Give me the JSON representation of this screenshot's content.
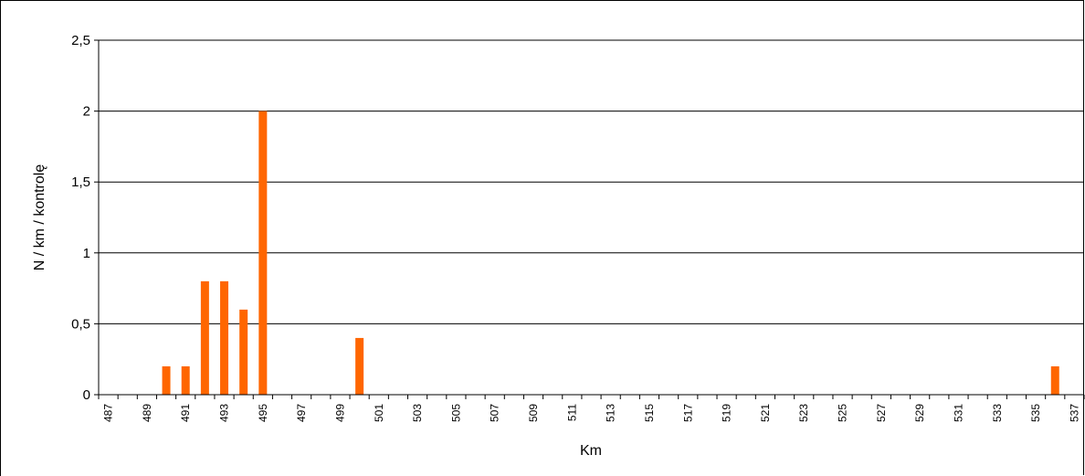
{
  "chart_data": {
    "type": "bar",
    "xlabel": "Km",
    "ylabel": "N / km / kontrolę",
    "ylim": [
      0,
      2.5
    ],
    "yticks": [
      0,
      0.5,
      1,
      1.5,
      2,
      2.5
    ],
    "ytick_labels": [
      "0",
      "0,5",
      "1",
      "1,5",
      "2",
      "2,5"
    ],
    "xtick_labels": [
      "487",
      "489",
      "491",
      "493",
      "495",
      "497",
      "499",
      "501",
      "503",
      "505",
      "507",
      "509",
      "511",
      "513",
      "515",
      "517",
      "519",
      "521",
      "523",
      "525",
      "527",
      "529",
      "531",
      "533",
      "535",
      "537"
    ],
    "categories": [
      487,
      488,
      489,
      490,
      491,
      492,
      493,
      494,
      495,
      496,
      497,
      498,
      499,
      500,
      501,
      502,
      503,
      504,
      505,
      506,
      507,
      508,
      509,
      510,
      511,
      512,
      513,
      514,
      515,
      516,
      517,
      518,
      519,
      520,
      521,
      522,
      523,
      524,
      525,
      526,
      527,
      528,
      529,
      530,
      531,
      532,
      533,
      534,
      535,
      536,
      537
    ],
    "values": [
      0,
      0,
      0,
      0.2,
      0.2,
      0.8,
      0.8,
      0.6,
      2,
      0,
      0,
      0,
      0,
      0.4,
      0,
      0,
      0,
      0,
      0,
      0,
      0,
      0,
      0,
      0,
      0,
      0,
      0,
      0,
      0,
      0,
      0,
      0,
      0,
      0,
      0,
      0,
      0,
      0,
      0,
      0,
      0,
      0,
      0,
      0,
      0,
      0,
      0,
      0,
      0,
      0.2,
      0
    ],
    "bar_color": "#ff6600",
    "grid": true,
    "legend": "none"
  }
}
